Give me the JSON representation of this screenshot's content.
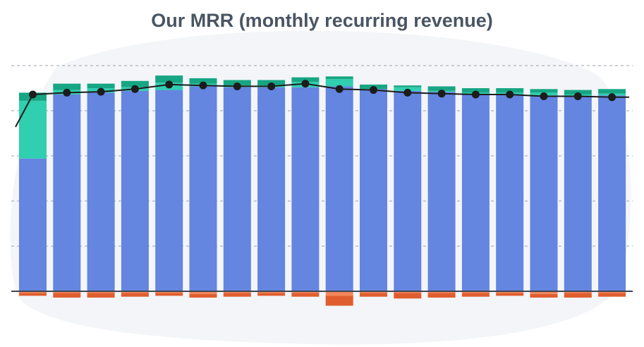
{
  "title": "Our MRR (monthly recurring revenue)",
  "chart_data": {
    "type": "bar",
    "stacked": true,
    "categories": [
      "",
      "",
      "",
      "",
      "",
      "",
      "",
      "",
      "",
      "",
      "",
      "",
      "",
      "",
      "",
      "",
      "",
      ""
    ],
    "ylim": [
      -10,
      250
    ],
    "gridlines": [
      0,
      50,
      100,
      150,
      200,
      250
    ],
    "grid": true,
    "series": [
      {
        "key": "base",
        "color": "#6485e0",
        "values": [
          147,
          218,
          220,
          222,
          223,
          227,
          226,
          226,
          226,
          227,
          224,
          222,
          221,
          218,
          218,
          217,
          216,
          217
        ]
      },
      {
        "key": "new",
        "color": "#2fcfb0",
        "values": [
          64,
          5,
          5,
          4,
          8,
          3,
          2,
          2,
          6,
          8,
          0,
          4,
          1,
          2,
          2,
          3,
          2,
          2
        ]
      },
      {
        "key": "expansion",
        "color": "#17a683",
        "values": [
          9,
          7,
          5,
          7,
          8,
          6,
          6,
          6,
          5,
          3,
          5,
          2,
          5,
          5,
          5,
          4,
          5,
          5
        ]
      },
      {
        "key": "contraction",
        "color": "#f2875c",
        "values": [
          -2,
          -2,
          -2,
          -2,
          -2,
          -3,
          -2,
          -2,
          -2,
          -5,
          -2,
          -2,
          -2,
          -2,
          -2,
          -3,
          -2,
          -2
        ]
      },
      {
        "key": "churn",
        "color": "#e05d2e",
        "values": [
          -3,
          -5,
          -5,
          -4,
          -3,
          -4,
          -4,
          -3,
          -4,
          -11,
          -4,
          -6,
          -5,
          -4,
          -3,
          -4,
          -5,
          -4
        ]
      }
    ],
    "line": {
      "color": "#1c1c1c",
      "values": [
        218,
        220,
        221,
        224,
        229,
        228,
        227,
        227,
        230,
        224,
        223,
        220,
        219,
        218,
        218,
        216,
        216,
        215
      ],
      "start_value": 182,
      "end_value": 215
    }
  }
}
